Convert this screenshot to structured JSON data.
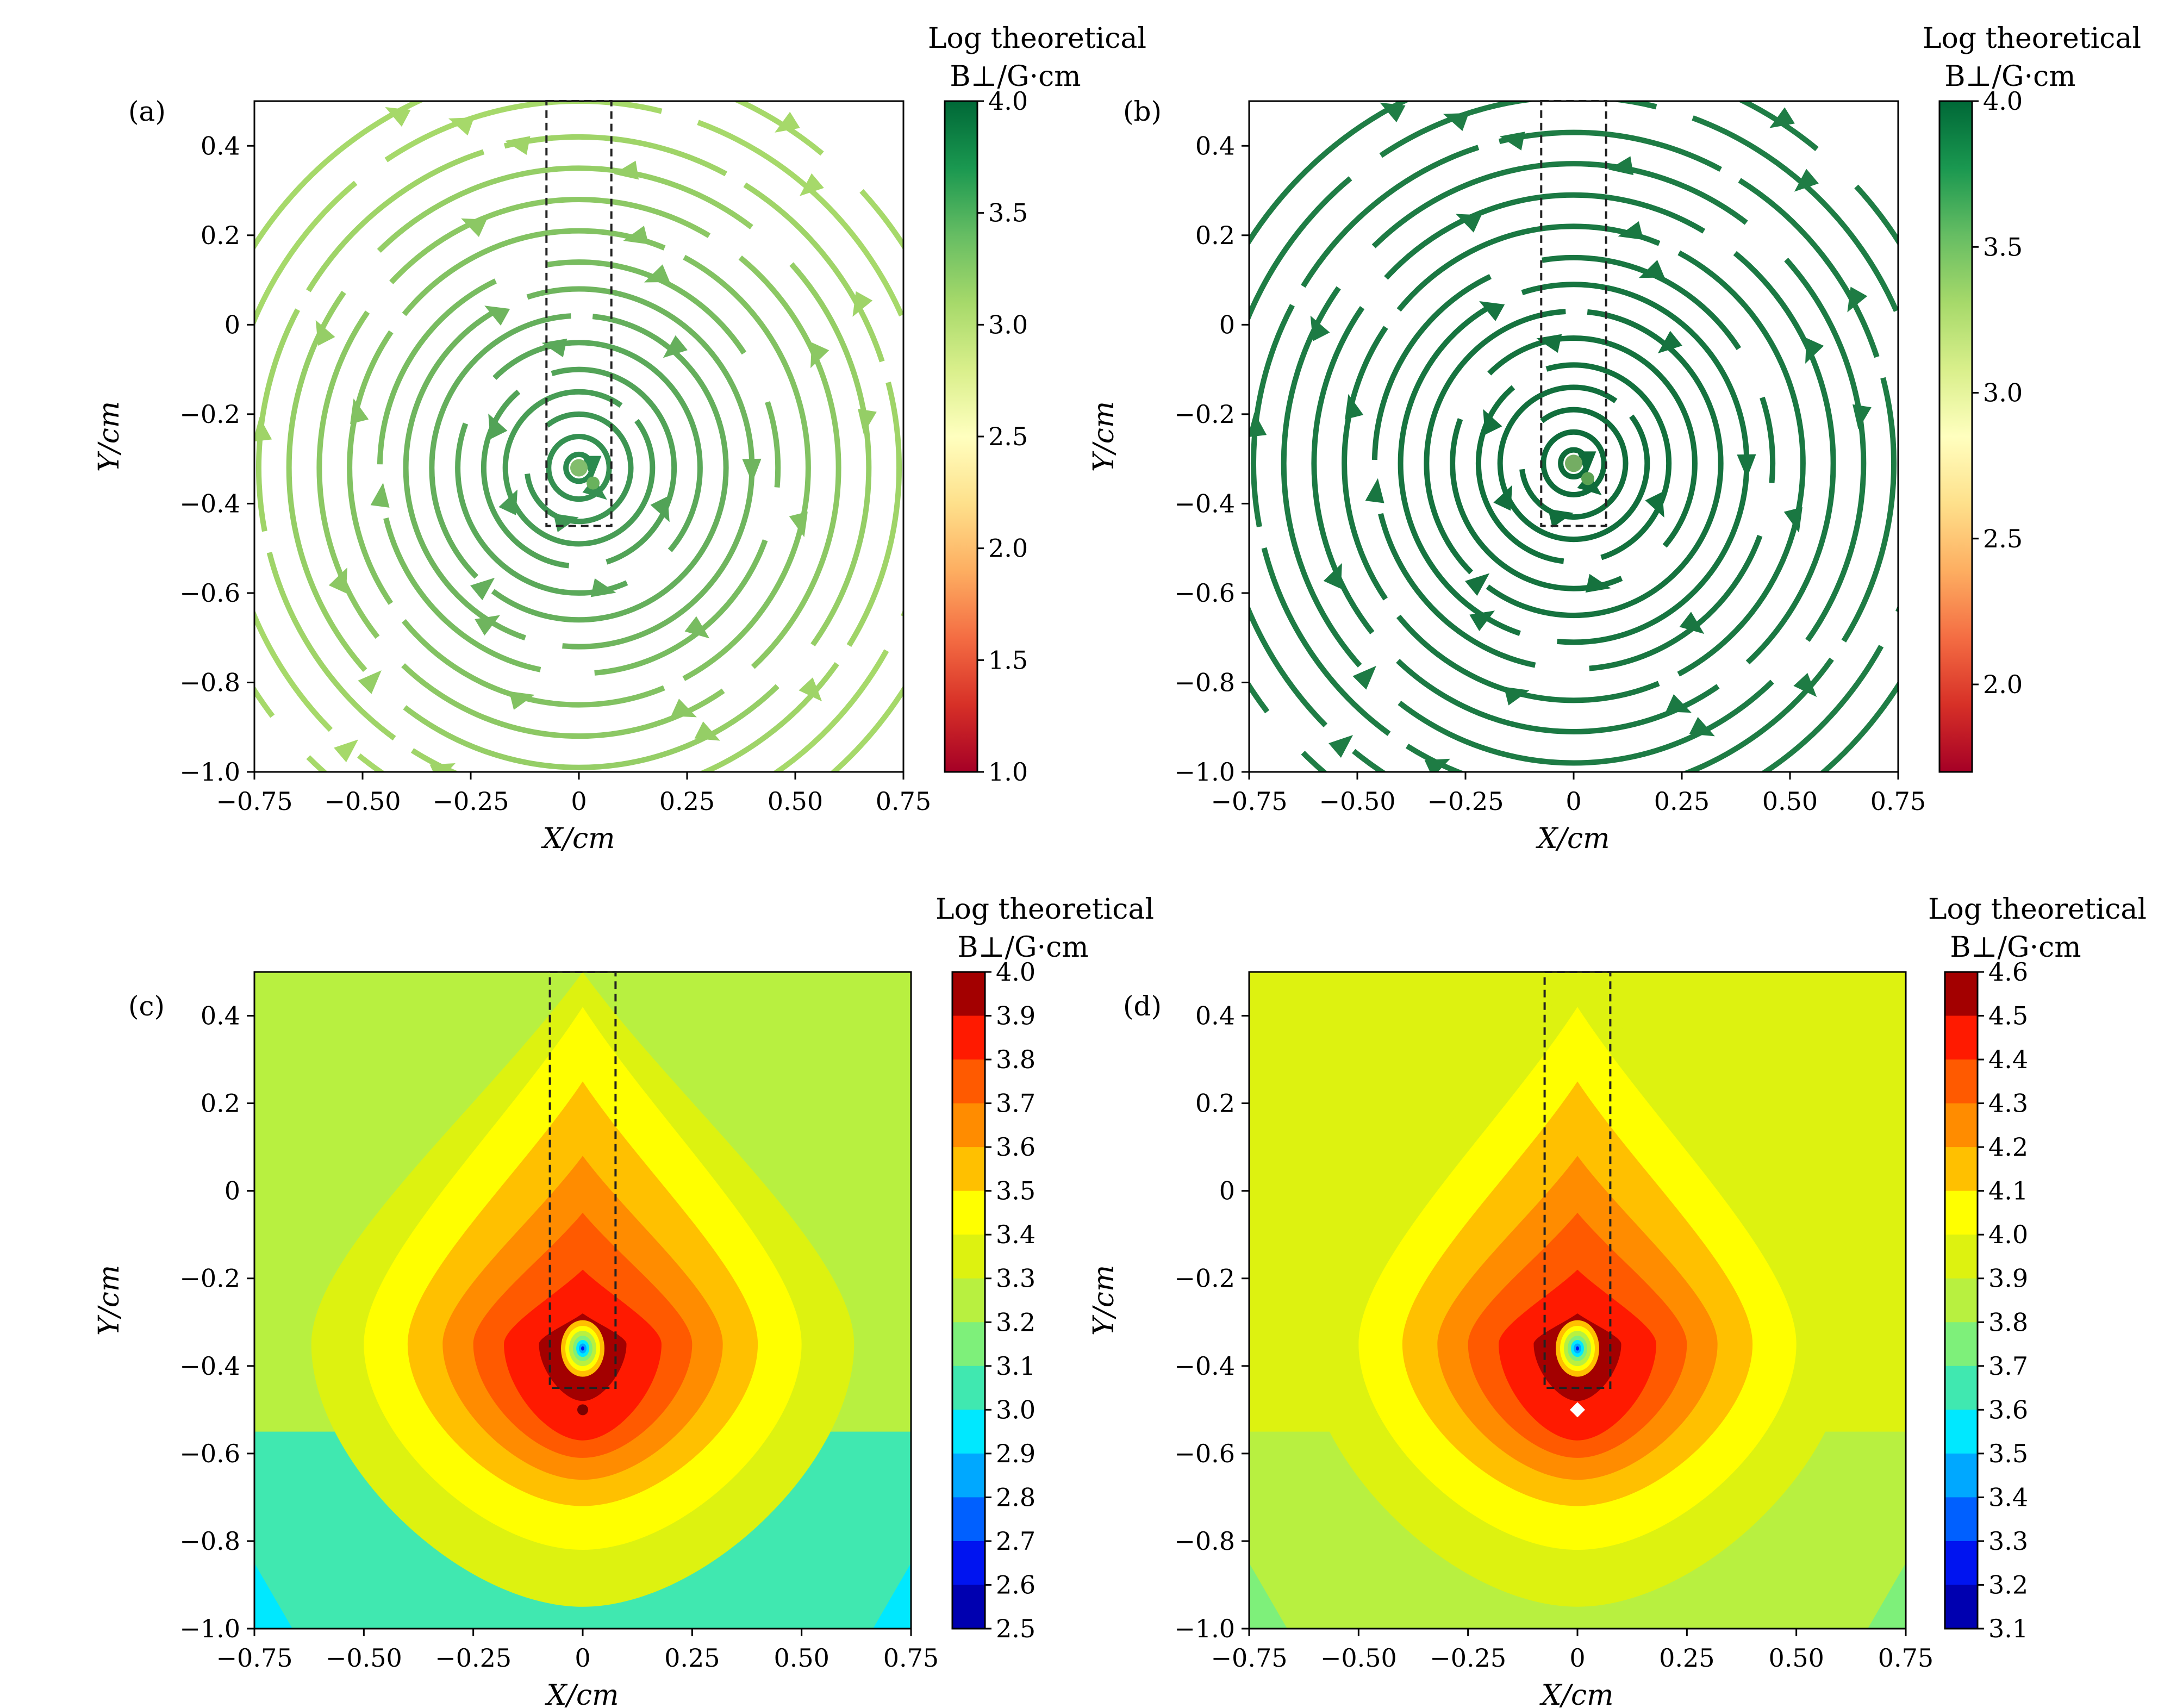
{
  "chart_data": [
    {
      "panel": "(a)",
      "type": "streamplot",
      "xlabel": "X/cm",
      "ylabel": "Y/cm",
      "xlim": [
        -0.75,
        0.75
      ],
      "ylim": [
        -1.0,
        0.5
      ],
      "xticks": [
        "−0.75",
        "−0.50",
        "−0.25",
        "0",
        "0.25",
        "0.50",
        "0.75"
      ],
      "yticks": [
        "−1.0",
        "−0.8",
        "−0.6",
        "−0.4",
        "−0.2",
        "0",
        "0.2",
        "0.4"
      ],
      "field_center": [
        0,
        -0.32
      ],
      "circulation": "clockwise",
      "streamline_radii": [
        0.03,
        0.07,
        0.12,
        0.17,
        0.22,
        0.28,
        0.34,
        0.4,
        0.46,
        0.53,
        0.6,
        0.67,
        0.74,
        0.82,
        0.9
      ],
      "dashed_box": {
        "x": [
          -0.075,
          0.075
        ],
        "y": [
          -0.45,
          0.5
        ]
      },
      "colorbar": {
        "title_line1": "Log theoretical",
        "title_line2": "B⊥/G·cm",
        "range": [
          1.0,
          4.0
        ],
        "ticks": [
          "4.0",
          "3.5",
          "3.0",
          "2.5",
          "2.0",
          "1.5",
          "1.0"
        ],
        "colormap": [
          "#a50026",
          "#d73027",
          "#f46d43",
          "#fdae61",
          "#fee08b",
          "#ffffbf",
          "#d9ef8b",
          "#a6d96a",
          "#66bd63",
          "#1a9850",
          "#006837"
        ]
      },
      "line_colors": {
        "inner": "#2b8a4f",
        "outer": "#a6d96a"
      }
    },
    {
      "panel": "(b)",
      "type": "streamplot",
      "xlabel": "X/cm",
      "ylabel": "Y/cm",
      "xlim": [
        -0.75,
        0.75
      ],
      "ylim": [
        -1.0,
        0.5
      ],
      "xticks": [
        "−0.75",
        "−0.50",
        "−0.25",
        "0",
        "0.25",
        "0.50",
        "0.75"
      ],
      "yticks": [
        "−1.0",
        "−0.8",
        "−0.6",
        "−0.4",
        "−0.2",
        "0",
        "0.2",
        "0.4"
      ],
      "field_center": [
        0,
        -0.31
      ],
      "circulation": "clockwise",
      "streamline_radii": [
        0.03,
        0.07,
        0.12,
        0.17,
        0.22,
        0.28,
        0.34,
        0.4,
        0.46,
        0.53,
        0.6,
        0.67,
        0.74,
        0.82,
        0.9
      ],
      "dashed_box": {
        "x": [
          -0.075,
          0.075
        ],
        "y": [
          -0.45,
          0.5
        ]
      },
      "colorbar": {
        "title_line1": "Log theoretical",
        "title_line2": "B⊥/G·cm",
        "range": [
          1.7,
          4.0
        ],
        "ticks": [
          "4.0",
          "3.5",
          "3.0",
          "2.5",
          "2.0"
        ],
        "colormap": [
          "#a50026",
          "#d73027",
          "#f46d43",
          "#fdae61",
          "#fee08b",
          "#ffffbf",
          "#d9ef8b",
          "#a6d96a",
          "#66bd63",
          "#1a9850",
          "#006837"
        ]
      },
      "line_colors": {
        "inner": "#0e6b3a",
        "outer": "#1f7d45"
      }
    },
    {
      "panel": "(c)",
      "type": "heatmap",
      "xlabel": "X/cm",
      "ylabel": "Y/cm",
      "xlim": [
        -0.75,
        0.75
      ],
      "ylim": [
        -1.0,
        0.5
      ],
      "xticks": [
        "−0.75",
        "−0.50",
        "−0.25",
        "0",
        "0.25",
        "0.50",
        "0.75"
      ],
      "yticks": [
        "−1.0",
        "−0.8",
        "−0.6",
        "−0.4",
        "−0.2",
        "0",
        "0.2",
        "0.4"
      ],
      "peak_center": [
        0,
        -0.35
      ],
      "hotspot": [
        0,
        -0.36
      ],
      "dark_spot": [
        0,
        -0.5
      ],
      "contour_levels": [
        3.4,
        3.5,
        3.6,
        3.7,
        3.8,
        3.9
      ],
      "dashed_box": {
        "x": [
          -0.075,
          0.075
        ],
        "y": [
          -0.45,
          0.5
        ]
      },
      "colorbar": {
        "title_line1": "Log theoretical",
        "title_line2": "B⊥/G·cm",
        "ticks": [
          "4.0",
          "3.9",
          "3.8",
          "3.7",
          "3.6",
          "3.5",
          "3.4",
          "3.3",
          "3.2",
          "3.1",
          "3.0",
          "2.9",
          "2.8",
          "2.7",
          "2.6",
          "2.5"
        ],
        "colors": [
          "#a30000",
          "#ff1a00",
          "#ff5a00",
          "#ff8c00",
          "#ffc000",
          "#ffff00",
          "#ddf210",
          "#b8f040",
          "#7ef07a",
          "#40e8b0",
          "#00e8ff",
          "#00a8ff",
          "#0060ff",
          "#0014f0",
          "#0000b0"
        ]
      },
      "corner_colors": {
        "top": "#b8f040",
        "bottom": "#40e8b0",
        "bottom_corner": "#00e8ff"
      }
    },
    {
      "panel": "(d)",
      "type": "heatmap",
      "xlabel": "X/cm",
      "ylabel": "Y/cm",
      "xlim": [
        -0.75,
        0.75
      ],
      "ylim": [
        -1.0,
        0.5
      ],
      "xticks": [
        "−0.75",
        "−0.50",
        "−0.25",
        "0",
        "0.25",
        "0.50",
        "0.75"
      ],
      "yticks": [
        "−1.0",
        "−0.8",
        "−0.6",
        "−0.4",
        "−0.2",
        "0",
        "0.2",
        "0.4"
      ],
      "peak_center": [
        0,
        -0.35
      ],
      "hotspot": [
        0,
        -0.36
      ],
      "white_spot": [
        0,
        -0.5
      ],
      "contour_levels": [
        4.0,
        4.1,
        4.2,
        4.3,
        4.4,
        4.5
      ],
      "dashed_box": {
        "x": [
          -0.075,
          0.075
        ],
        "y": [
          -0.45,
          0.5
        ]
      },
      "colorbar": {
        "title_line1": "Log theoretical",
        "title_line2": "B⊥/G·cm",
        "ticks": [
          "4.6",
          "4.5",
          "4.4",
          "4.3",
          "4.2",
          "4.1",
          "4.0",
          "3.9",
          "3.8",
          "3.7",
          "3.6",
          "3.5",
          "3.4",
          "3.3",
          "3.2",
          "3.1"
        ],
        "colors": [
          "#a30000",
          "#ff1a00",
          "#ff5a00",
          "#ff8c00",
          "#ffc000",
          "#ffff00",
          "#ddf210",
          "#b8f040",
          "#7ef07a",
          "#40e8b0",
          "#00e8ff",
          "#00a8ff",
          "#0060ff",
          "#0014f0",
          "#0000b0"
        ]
      },
      "corner_colors": {
        "top": "#ddf210",
        "bottom": "#b8f040",
        "bottom_corner": "#7ef07a"
      }
    }
  ]
}
